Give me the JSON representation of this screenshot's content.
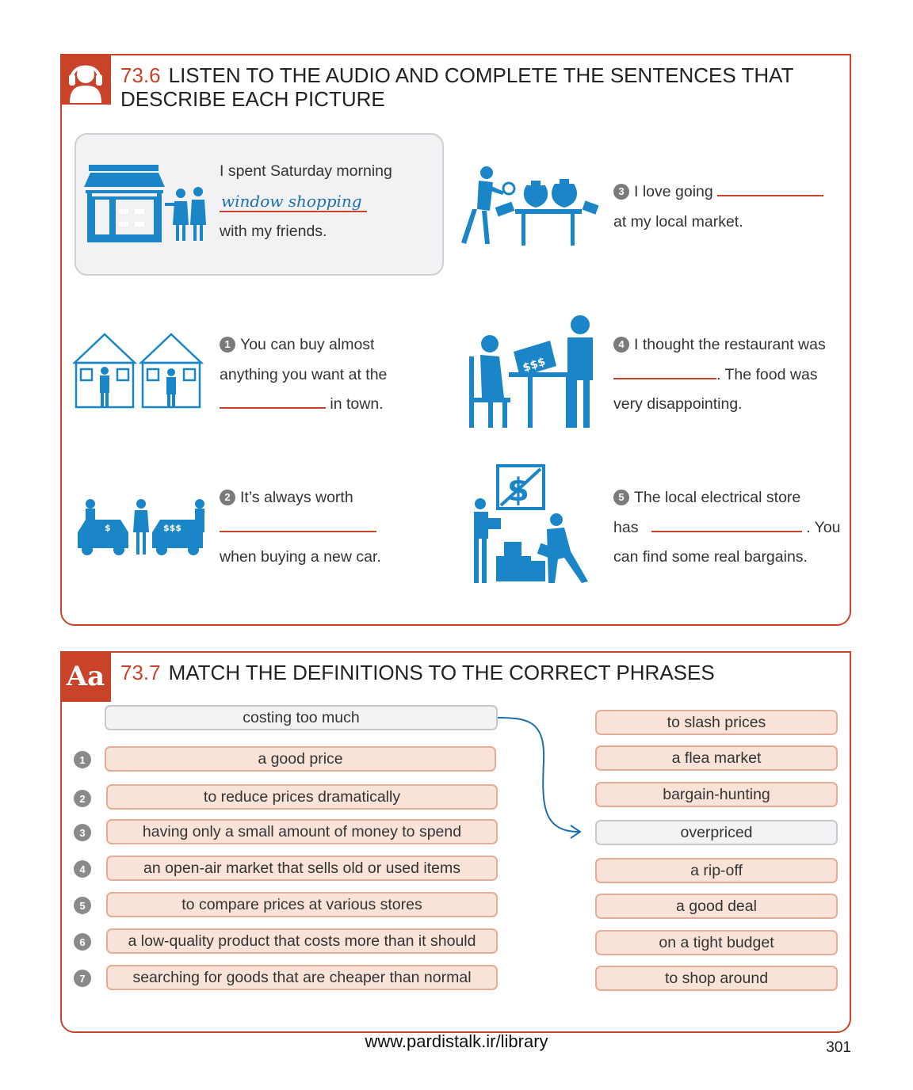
{
  "section1": {
    "number": "73.6",
    "title": "LISTEN TO THE AUDIO AND COMPLETE THE SENTENCES THAT DESCRIBE EACH PICTURE",
    "example": {
      "line1": "I spent Saturday morning",
      "answer": "window shopping",
      "line3": "with my friends."
    },
    "items": [
      {
        "num": "1",
        "a": "You can buy almost",
        "b": "anything you want at the",
        "c": "in town."
      },
      {
        "num": "2",
        "a": "It’s always worth",
        "c": "when buying a new car."
      },
      {
        "num": "3",
        "a": "I love going",
        "b": "at my local market."
      },
      {
        "num": "4",
        "a": "I thought the restaurant was",
        "b": ". The food was",
        "c": "very disappointing."
      },
      {
        "num": "5",
        "a": "The local electrical store",
        "b1": "has",
        "b2": ". You",
        "c": "can find some real bargains."
      }
    ]
  },
  "section2": {
    "number": "73.7",
    "badge": "Aa",
    "title": "MATCH THE DEFINITIONS TO THE CORRECT PHRASES",
    "definitions": [
      {
        "num": "",
        "text": "costing too much"
      },
      {
        "num": "1",
        "text": "a good price"
      },
      {
        "num": "2",
        "text": "to reduce prices dramatically"
      },
      {
        "num": "3",
        "text": "having only a small amount of money to spend"
      },
      {
        "num": "4",
        "text": "an open-air market that sells old or used items"
      },
      {
        "num": "5",
        "text": "to compare prices at various stores"
      },
      {
        "num": "6",
        "text": "a low-quality product that costs more than it should"
      },
      {
        "num": "7",
        "text": "searching for goods that are cheaper than normal"
      }
    ],
    "phrases": [
      "to slash prices",
      "a flea market",
      "bargain-hunting",
      "overpriced",
      "a rip-off",
      "a good deal",
      "on a tight budget",
      "to shop around"
    ]
  },
  "footer": {
    "url": "www.pardistalk.ir/library",
    "page": "301"
  },
  "colors": {
    "accent": "#c8432a",
    "icon_blue": "#1a86c8",
    "pill_fill": "#f9e3d9"
  },
  "icons": [
    "headphones-icon",
    "shop-window-icon",
    "market-stalls-icon",
    "haggling-cars-icon",
    "flea-market-icon",
    "restaurant-bill-icon",
    "sale-boxes-icon"
  ]
}
